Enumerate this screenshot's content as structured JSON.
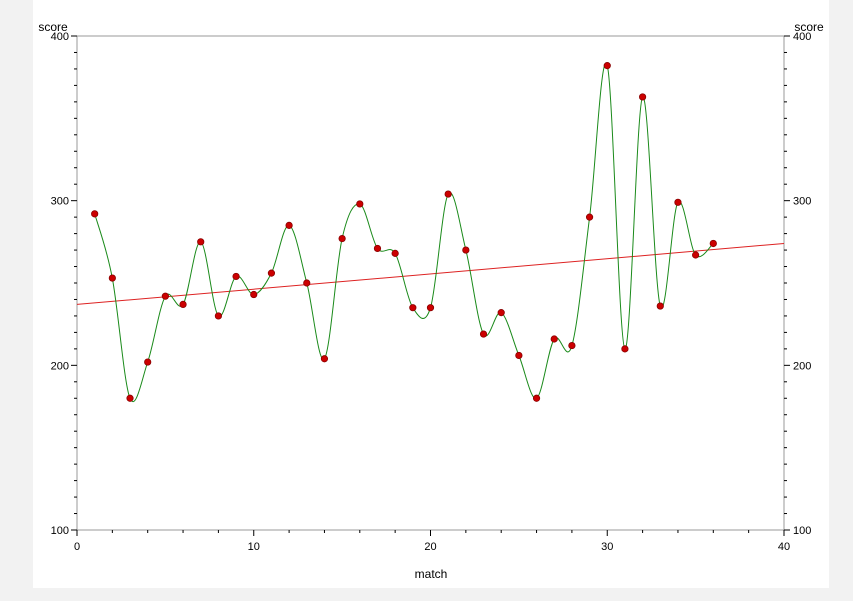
{
  "chart_data": {
    "type": "scatter",
    "title": "",
    "xlabel": "match",
    "ylabel": "score",
    "ylabel_right": "score",
    "xlim": [
      0,
      40
    ],
    "ylim": [
      100,
      400
    ],
    "xticks": [
      0,
      10,
      20,
      30,
      40
    ],
    "yticks": [
      100,
      200,
      300,
      400
    ],
    "grid": false,
    "legend": "none",
    "series": [
      {
        "kind": "points",
        "color": "#cc0000",
        "x": [
          1,
          2,
          3,
          4,
          5,
          6,
          7,
          8,
          9,
          10,
          11,
          12,
          13,
          14,
          15,
          16,
          17,
          18,
          19,
          20,
          21,
          22,
          23,
          24,
          25,
          26,
          27,
          28,
          29,
          30,
          31,
          32,
          33,
          34,
          35,
          36
        ],
        "y": [
          292,
          253,
          180,
          202,
          242,
          237,
          275,
          230,
          254,
          243,
          256,
          285,
          250,
          204,
          277,
          298,
          271,
          268,
          235,
          235,
          304,
          270,
          219,
          232,
          206,
          180,
          216,
          212,
          290,
          382,
          210,
          363,
          236,
          299,
          267,
          274
        ]
      },
      {
        "kind": "spline",
        "color": "#1a8a1a"
      },
      {
        "kind": "regression",
        "color": "#dd2222",
        "x": [
          0,
          40
        ],
        "y": [
          237,
          274
        ]
      }
    ]
  }
}
